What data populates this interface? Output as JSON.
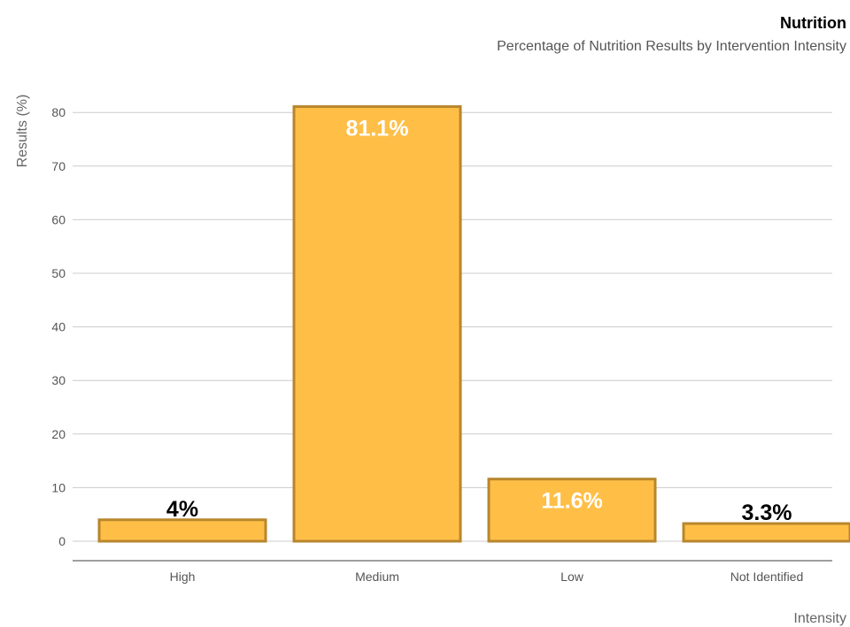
{
  "chart_data": {
    "type": "bar",
    "title": "Nutrition",
    "subtitle": "Percentage of Nutrition Results by Intervention Intensity",
    "xlabel": "Intensity",
    "ylabel": "Results (%)",
    "categories": [
      "High",
      "Medium",
      "Low",
      "Not Identified"
    ],
    "values": [
      4,
      81.1,
      11.6,
      3.3
    ],
    "data_labels": [
      "4%",
      "81.1%",
      "11.6%",
      "3.3%"
    ],
    "ylim": [
      0,
      80
    ],
    "yticks": [
      0,
      10,
      20,
      30,
      40,
      50,
      60,
      70,
      80
    ],
    "grid": true,
    "legend": "none",
    "colors": {
      "bar_fill": "#FFBF47",
      "bar_stroke": "#B8862C",
      "label_inside": "#ffffff",
      "label_outside": "#000000",
      "grid": "#cccccc",
      "axis": "#666666"
    }
  }
}
